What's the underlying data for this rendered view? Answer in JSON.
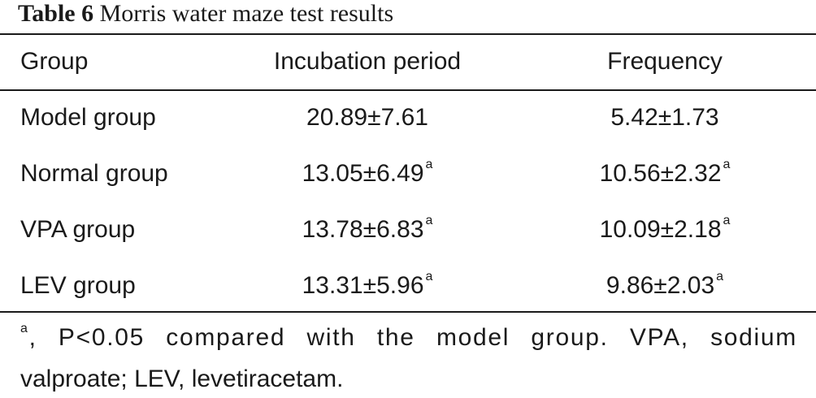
{
  "caption": {
    "label": "Table 6",
    "title": "Morris water maze test results"
  },
  "table": {
    "columns": [
      "Group",
      "Incubation period",
      "Frequency"
    ],
    "rows": [
      {
        "group": "Model group",
        "incubation": "20.89±7.61",
        "incubation_mark": "",
        "frequency": "5.42±1.73",
        "frequency_mark": ""
      },
      {
        "group": "Normal group",
        "incubation": "13.05±6.49",
        "incubation_mark": "a",
        "frequency": "10.56±2.32",
        "frequency_mark": "a"
      },
      {
        "group": "VPA group",
        "incubation": "13.78±6.83",
        "incubation_mark": "a",
        "frequency": "10.09±2.18",
        "frequency_mark": "a"
      },
      {
        "group": "LEV group",
        "incubation": "13.31±5.96",
        "incubation_mark": "a",
        "frequency": "9.86±2.03",
        "frequency_mark": "a"
      }
    ]
  },
  "footnote": {
    "mark": "a",
    "line1": ", P<0.05 compared with the model group. VPA, sodium",
    "line2": "valproate; LEV, levetiracetam."
  }
}
